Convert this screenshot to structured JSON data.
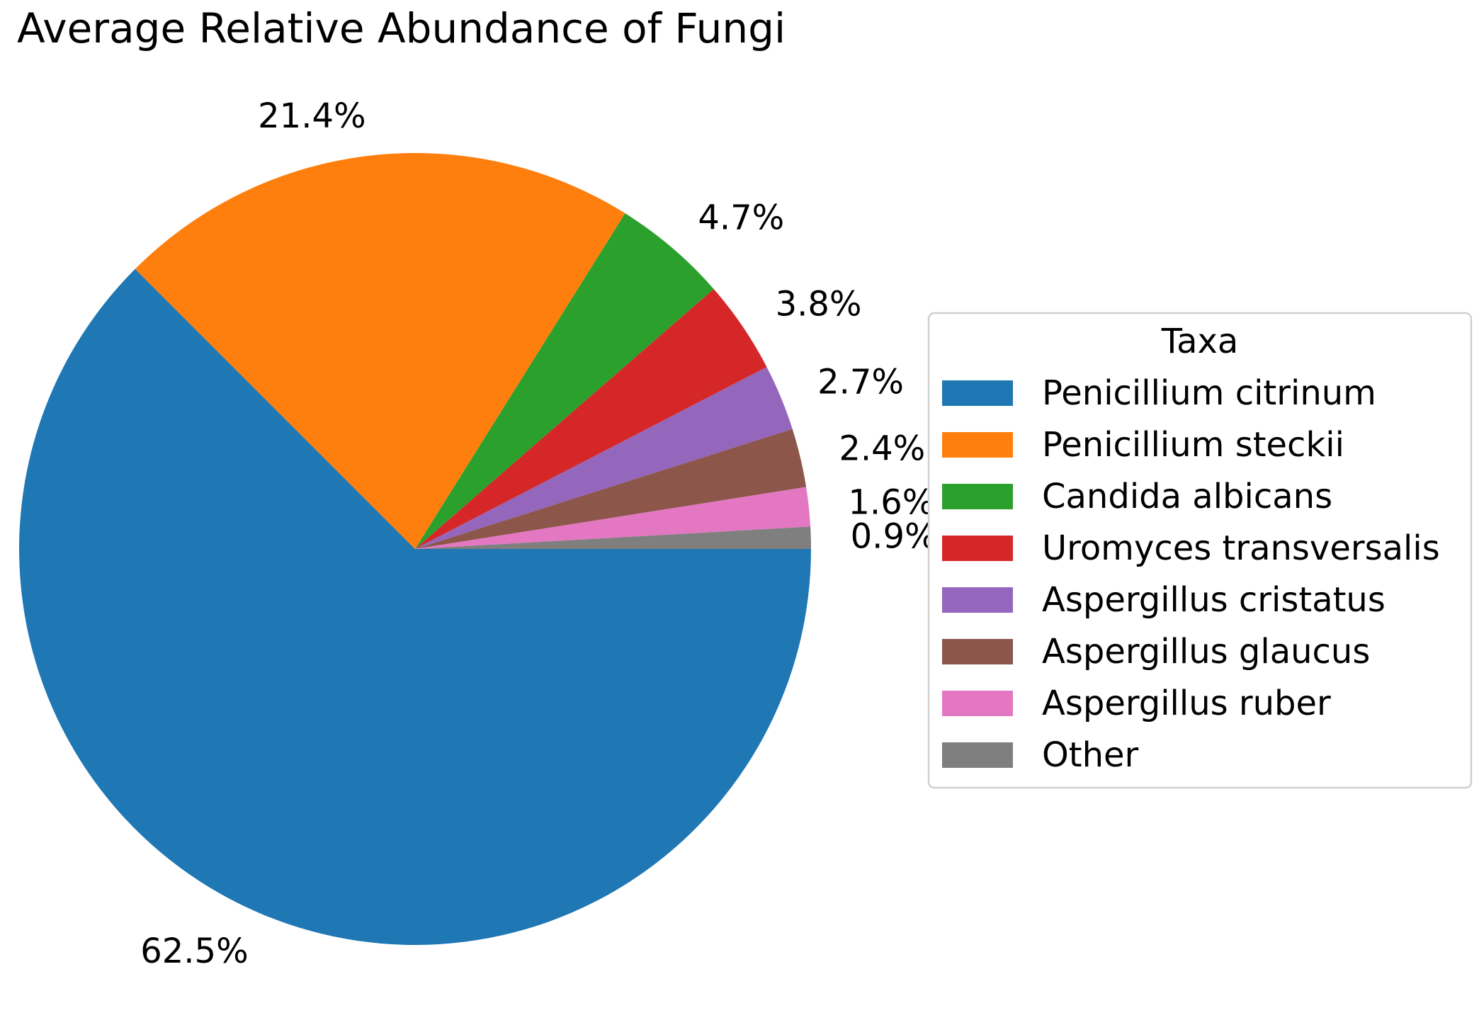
{
  "chart_data": {
    "type": "pie",
    "title": "Average Relative Abundance of Fungi",
    "legend_title": "Taxa",
    "legend_position": "right",
    "start_angle_deg": 0,
    "direction": "clockwise",
    "slices": [
      {
        "label": "Penicillium citrinum",
        "value": 62.5,
        "display": "62.5%",
        "color": "#1f77b4"
      },
      {
        "label": "Penicillium steckii",
        "value": 21.4,
        "display": "21.4%",
        "color": "#ff7f0e"
      },
      {
        "label": "Candida albicans",
        "value": 4.7,
        "display": "4.7%",
        "color": "#2ca02c"
      },
      {
        "label": "Uromyces transversalis",
        "value": 3.8,
        "display": "3.8%",
        "color": "#d62728"
      },
      {
        "label": "Aspergillus cristatus",
        "value": 2.7,
        "display": "2.7%",
        "color": "#9467bd"
      },
      {
        "label": "Aspergillus glaucus",
        "value": 2.4,
        "display": "2.4%",
        "color": "#8c564b"
      },
      {
        "label": "Aspergillus ruber",
        "value": 1.6,
        "display": "1.6%",
        "color": "#e377c2"
      },
      {
        "label": "Other",
        "value": 0.9,
        "display": "0.9%",
        "color": "#7f7f7f"
      }
    ]
  }
}
